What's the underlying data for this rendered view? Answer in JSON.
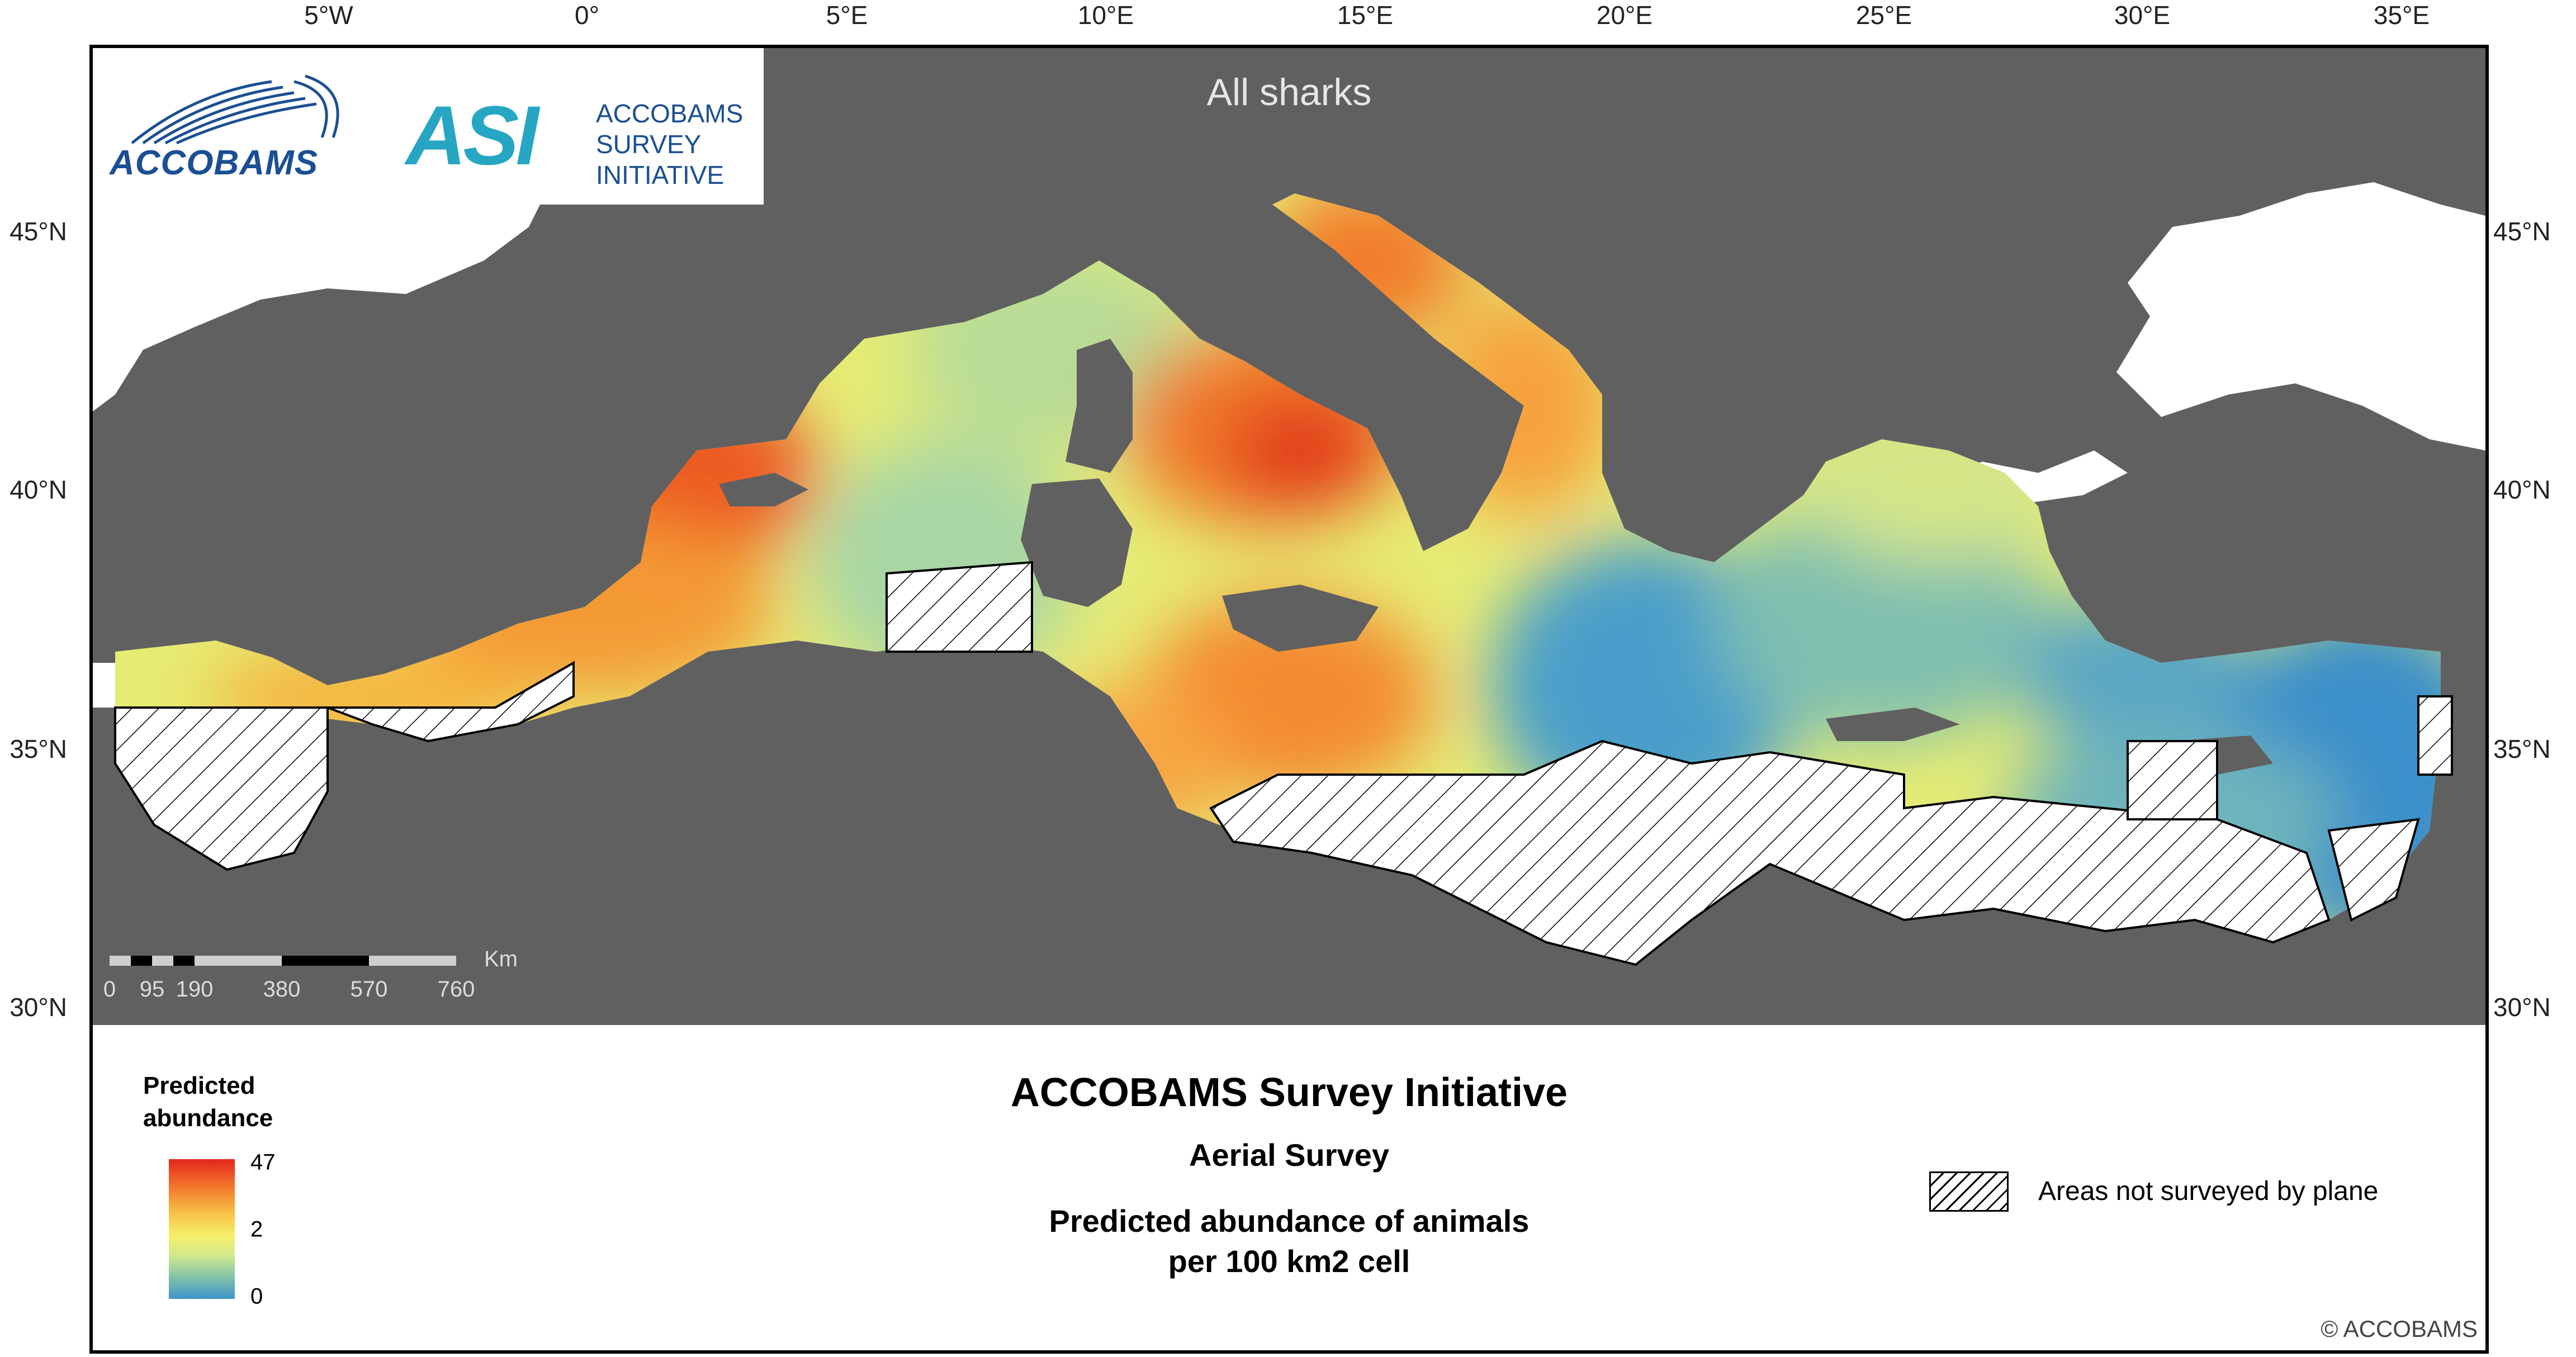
{
  "map": {
    "title": "All sharks",
    "top_ticks": [
      "5°W",
      "0°",
      "5°E",
      "10°E",
      "15°E",
      "20°E",
      "25°E",
      "30°E",
      "35°E"
    ],
    "lat_ticks": [
      "45°N",
      "40°N",
      "35°N",
      "30°N"
    ],
    "scale_bar": {
      "labels": [
        "0",
        "95",
        "190",
        "380",
        "570",
        "760"
      ],
      "unit": "Km"
    }
  },
  "logos": {
    "accobams": "ACCOBAMS",
    "asi_mark": "ASI",
    "asi_lines": [
      "ACCOBAMS",
      "SURVEY",
      "INITIATIVE"
    ]
  },
  "legend": {
    "heading_line1": "Predicted",
    "heading_line2": "abundance",
    "ramp_max": "47",
    "ramp_mid": "2",
    "ramp_min": "0",
    "ramp_colors": [
      "#e2261d",
      "#f3772b",
      "#f8c64a",
      "#f6ee6a",
      "#d4ea8a",
      "#8ecaa4",
      "#3d95c9"
    ],
    "main_title": "ACCOBAMS Survey Initiative",
    "subtitle": "Aerial Survey",
    "description_line1": "Predicted abundance of animals",
    "description_line2": "per 100 km2 cell",
    "hatch_label": "Areas not surveyed by plane",
    "copyright": "© ACCOBAMS"
  },
  "colors": {
    "land": "#606060",
    "black_sea_and_atlantic": "#ffffff",
    "title_text": "#e6e6e6"
  }
}
